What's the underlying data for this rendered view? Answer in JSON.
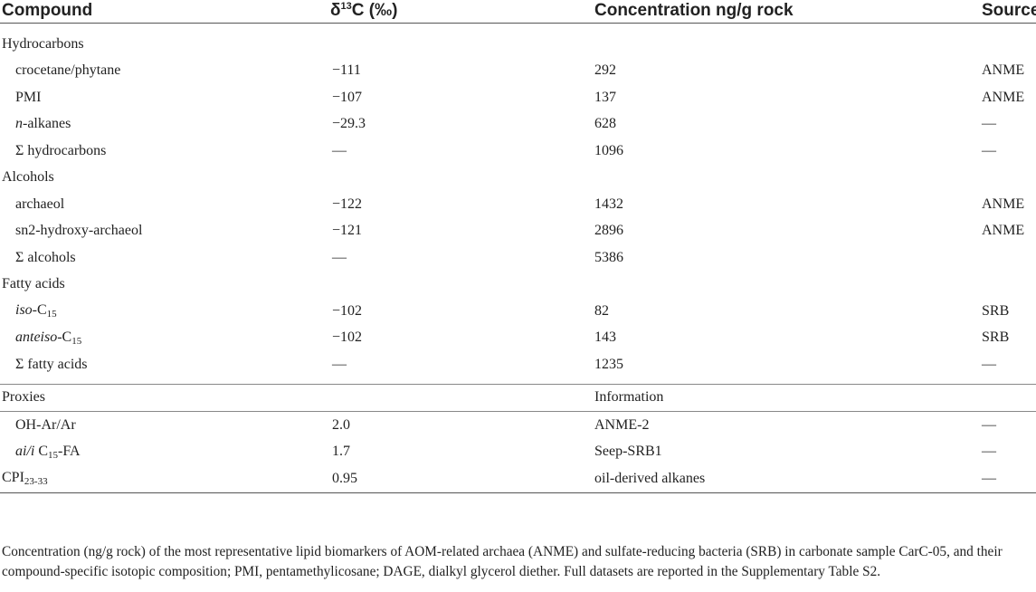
{
  "headers": {
    "compound": "Compound",
    "delta_prefix": "δ",
    "delta_sup": "13",
    "delta_suffix": "C (‰)",
    "concentration": "Concentration ng/g rock",
    "source": "Source"
  },
  "groups": {
    "hydrocarbons": {
      "label": "Hydrocarbons",
      "rows": [
        {
          "name": "crocetane/phytane",
          "delta": "−111",
          "conc": "292",
          "source": "ANME"
        },
        {
          "name": "PMI",
          "delta": "−107",
          "conc": "137",
          "source": "ANME"
        },
        {
          "name_italic": "n",
          "name_rest": "-alkanes",
          "delta": "−29.3",
          "conc": "628",
          "source": "—"
        },
        {
          "name": "Σ hydrocarbons",
          "delta": "—",
          "conc": "1096",
          "source": "—"
        }
      ]
    },
    "alcohols": {
      "label": "Alcohols",
      "rows": [
        {
          "name": "archaeol",
          "delta": "−122",
          "conc": "1432",
          "source": "ANME"
        },
        {
          "name": "sn2-hydroxy-archaeol",
          "delta": "−121",
          "conc": "2896",
          "source": "ANME"
        },
        {
          "name": "Σ alcohols",
          "delta": "—",
          "conc": "5386",
          "source": ""
        }
      ]
    },
    "fatty_acids": {
      "label": "Fatty acids",
      "rows": [
        {
          "name_italic": "iso",
          "name_mid": "-C",
          "name_sub": "15",
          "delta": "−102",
          "conc": "82",
          "source": "SRB"
        },
        {
          "name_italic": "anteiso",
          "name_mid": "-C",
          "name_sub": "15",
          "delta": "−102",
          "conc": "143",
          "source": "SRB"
        },
        {
          "name": "Σ fatty acids",
          "delta": "—",
          "conc": "1235",
          "source": "—"
        }
      ]
    }
  },
  "proxies": {
    "label": "Proxies",
    "info_label": "Information",
    "rows": [
      {
        "name": "OH-Ar/Ar",
        "value": "2.0",
        "info": "ANME-2",
        "source": "—"
      },
      {
        "name_italic": "ai/i",
        "name_mid": " C",
        "name_sub": "15",
        "name_rest": "-FA",
        "value": "1.7",
        "info": "Seep-SRB1",
        "source": "—"
      },
      {
        "name_mid": "CPI",
        "name_sub": "23-33",
        "value": "0.95",
        "info": "oil-derived alkanes",
        "source": "—"
      }
    ]
  },
  "footnote": "Concentration (ng/g rock) of the most representative lipid biomarkers of AOM-related archaea (ANME) and sulfate-reducing bacteria (SRB) in carbonate sample CarC-05, and their compound-specific isotopic composition; PMI, pentamethylicosane; DAGE, dialkyl glycerol diether. Full datasets are reported in the Supplementary Table S2."
}
